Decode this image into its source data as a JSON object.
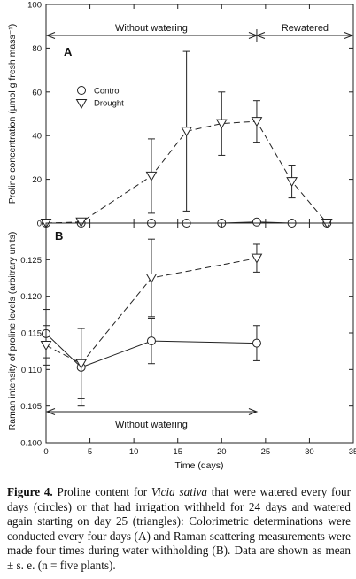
{
  "chart_data": [
    {
      "type": "line",
      "panel_label": "A",
      "ylabel": "Proline concentration (µmol g fresh mass⁻¹)",
      "ylim": [
        0,
        100
      ],
      "yticks": [
        0,
        20,
        40,
        60,
        80,
        100
      ],
      "xlim": [
        0,
        35
      ],
      "grid": false,
      "legend_position": "upper-left",
      "annotations": [
        {
          "text": "Without watering",
          "from": 0,
          "to": 24
        },
        {
          "text": "Rewatered",
          "from": 24,
          "to": 35
        }
      ],
      "series": [
        {
          "name": "Control",
          "marker": "circle",
          "line": "solid",
          "x": [
            0,
            4,
            12,
            16,
            20,
            24,
            28,
            32
          ],
          "y": [
            0,
            0,
            0,
            0,
            0,
            0.5,
            0,
            0
          ],
          "err": [
            0,
            0,
            0,
            0,
            0,
            0,
            0,
            0
          ]
        },
        {
          "name": "Drought",
          "marker": "triangle-down",
          "line": "dashed",
          "x": [
            0,
            4,
            12,
            16,
            20,
            24,
            28,
            32
          ],
          "y": [
            0,
            0.5,
            21.5,
            42,
            45.5,
            46.5,
            19,
            0
          ],
          "err": [
            0,
            0,
            17,
            36.5,
            14.5,
            9.5,
            7.5,
            0
          ]
        }
      ]
    },
    {
      "type": "line",
      "panel_label": "B",
      "xlabel": "Time (days)",
      "ylabel": "Raman intensity of proline levels (arbitrary units)",
      "ylim": [
        0.1,
        0.13
      ],
      "yticks": [
        "0.100",
        "0.105",
        "0.110",
        "0.115",
        "0.120",
        "0.125"
      ],
      "xlim": [
        0,
        35
      ],
      "xticks": [
        0,
        5,
        10,
        15,
        20,
        25,
        30,
        35
      ],
      "grid": false,
      "annotations": [
        {
          "text": "Without watering",
          "from": 0,
          "to": 24
        }
      ],
      "series": [
        {
          "name": "Control",
          "marker": "circle",
          "line": "solid",
          "x": [
            0,
            4,
            12,
            24
          ],
          "y": [
            0.1149,
            0.1103,
            0.1139,
            0.1136
          ],
          "err": [
            0.0033,
            0.0053,
            0.0031,
            0.0024
          ]
        },
        {
          "name": "Drought",
          "marker": "triangle-down",
          "line": "dashed",
          "x": [
            0,
            4,
            12,
            24
          ],
          "y": [
            0.1133,
            0.1108,
            0.1225,
            0.1252
          ],
          "err": [
            0.0027,
            0.0048,
            0.0053,
            0.0019
          ]
        }
      ]
    }
  ],
  "caption": {
    "label": "Figure 4.",
    "text_before": " Proline content for ",
    "species": "Vicia sativa",
    "text_after": " that were watered every four days (circles) or that had irrigation withheld for 24 days and watered again starting on day 25 (triangles): Colorimetric determinations were conducted every four days (A) and Raman scattering measurements were made four times during water withholding (B). Data are shown as mean ± s. e. (n = five plants)."
  }
}
